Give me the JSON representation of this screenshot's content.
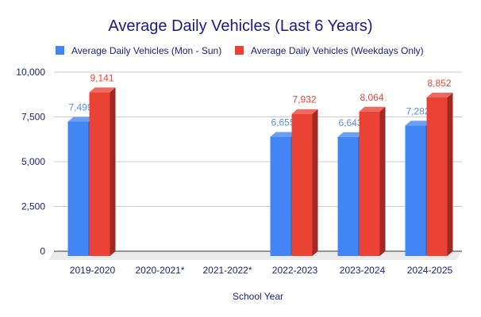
{
  "chart_data": {
    "type": "bar",
    "style": "3d",
    "title": "Average Daily Vehicles (Last 6 Years)",
    "xlabel": "School Year",
    "ylabel": "",
    "categories": [
      "2019-2020",
      "2020-2021*",
      "2021-2022*",
      "2022-2023",
      "2023-2024",
      "2024-2025"
    ],
    "series": [
      {
        "name": "Average Daily Vehicles (Mon - Sun)",
        "color": "#4285f4",
        "values": [
          7499,
          null,
          null,
          6655,
          6643,
          7282
        ],
        "labels": [
          "7,499",
          "",
          "",
          "6,655",
          "6,643",
          "7,282"
        ]
      },
      {
        "name": "Average Daily Vehicles (Weekdays Only)",
        "color": "#ea4335",
        "values": [
          9141,
          null,
          null,
          7932,
          8064,
          8852
        ],
        "labels": [
          "9,141",
          "",
          "",
          "7,932",
          "8,064",
          "8,852"
        ]
      }
    ],
    "ylim": [
      0,
      10000
    ],
    "yticks": [
      0,
      2500,
      5000,
      7500,
      10000
    ],
    "ytick_labels": [
      "0",
      "2,500",
      "5,000",
      "7,500",
      "10,000"
    ],
    "grid": true,
    "legend_position": "top"
  }
}
